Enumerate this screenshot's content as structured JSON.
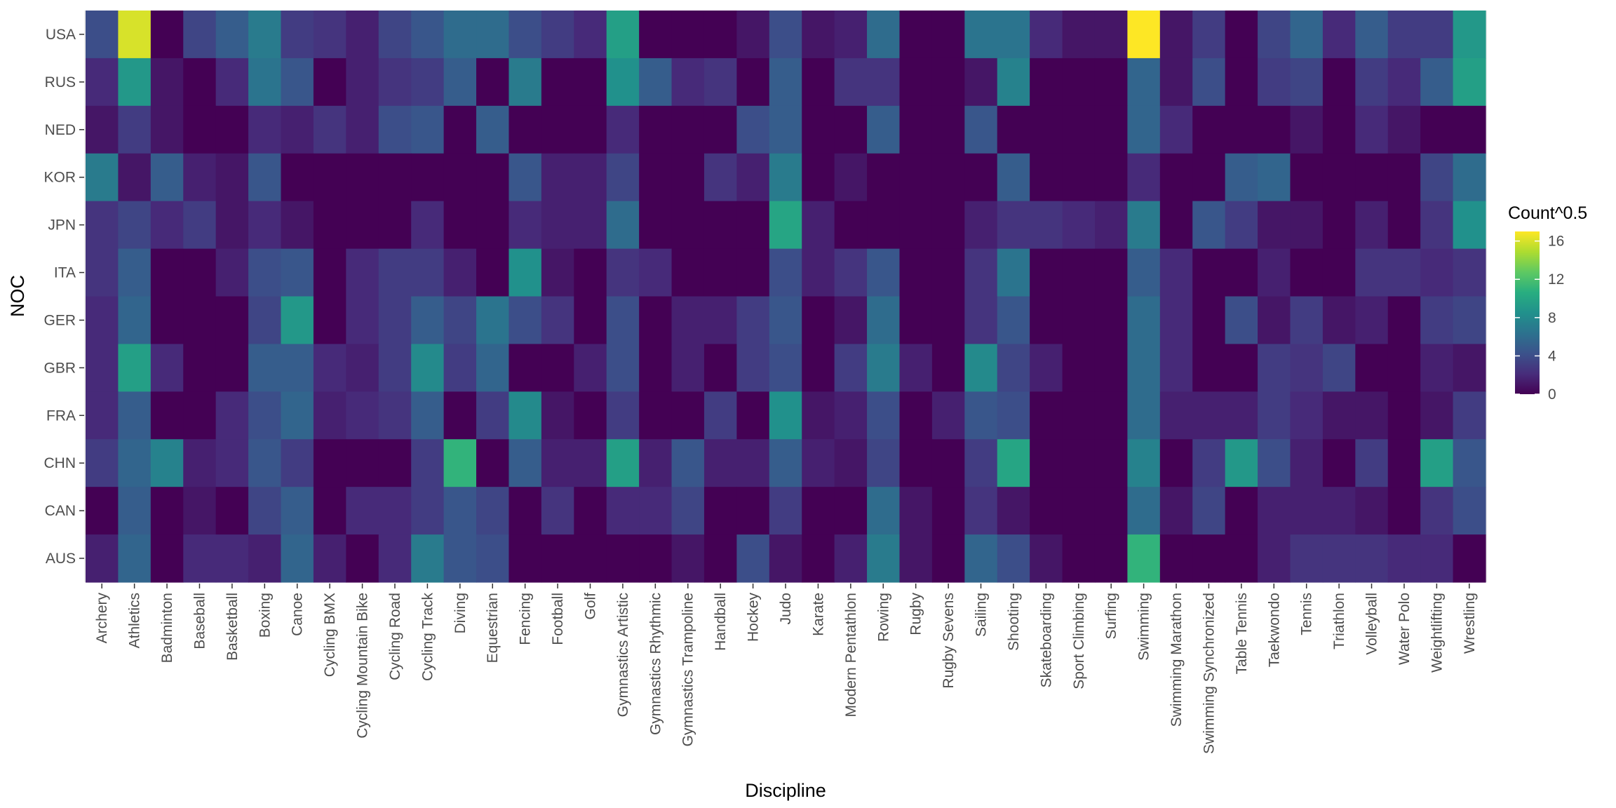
{
  "chart_data": {
    "type": "heatmap",
    "title": "",
    "xlabel": "Discipline",
    "ylabel": "NOC",
    "legend_title": "Count^0.5",
    "legend_position": "right",
    "color_scale": "viridis",
    "value_range": [
      0,
      17
    ],
    "legend_ticks": [
      0,
      4,
      8,
      12,
      16
    ],
    "rows": [
      "USA",
      "RUS",
      "NED",
      "KOR",
      "JPN",
      "ITA",
      "GER",
      "GBR",
      "FRA",
      "CHN",
      "CAN",
      "AUS"
    ],
    "columns": [
      "Archery",
      "Athletics",
      "Badminton",
      "Baseball",
      "Basketball",
      "Boxing",
      "Canoe",
      "Cycling BMX",
      "Cycling Mountain Bike",
      "Cycling Road",
      "Cycling Track",
      "Diving",
      "Equestrian",
      "Fencing",
      "Football",
      "Golf",
      "Gymnastics Artistic",
      "Gymnastics Rhythmic",
      "Gymnastics Trampoline",
      "Handball",
      "Hockey",
      "Judo",
      "Karate",
      "Modern Pentathlon",
      "Rowing",
      "Rugby",
      "Rugby Sevens",
      "Sailing",
      "Shooting",
      "Skateboarding",
      "Sport Climbing",
      "Surfing",
      "Swimming",
      "Swimming Marathon",
      "Swimming Synchronized",
      "Table Tennis",
      "Taekwondo",
      "Tennis",
      "Triathlon",
      "Volleyball",
      "Water Polo",
      "Weightlifting",
      "Wrestling"
    ],
    "values": [
      [
        4,
        16,
        0,
        3.5,
        5,
        7,
        3,
        2.5,
        1.5,
        3.5,
        4.5,
        6,
        6,
        4,
        3,
        2,
        9.5,
        0,
        0,
        0,
        1,
        4,
        1,
        1.5,
        6,
        0,
        0,
        6.5,
        6.5,
        2,
        1,
        1,
        17,
        1,
        3,
        0,
        3.5,
        5.5,
        2,
        5,
        3,
        3,
        9
      ],
      [
        2,
        9,
        1,
        0,
        2,
        6.5,
        4.5,
        0,
        1.5,
        2.5,
        3,
        5,
        0,
        7,
        0,
        0,
        8.5,
        5,
        2,
        2.5,
        0,
        5,
        0,
        2.5,
        2.5,
        0,
        0,
        1,
        7.5,
        0,
        0,
        0,
        5.5,
        1,
        4,
        0,
        3,
        3.5,
        0,
        3,
        2,
        5,
        9.5
      ],
      [
        1,
        3,
        1,
        0,
        0,
        2,
        1.5,
        2.5,
        1.5,
        4,
        4.5,
        0,
        5,
        0,
        0,
        0,
        2,
        0,
        0,
        0,
        4,
        5,
        0,
        0,
        5,
        0,
        0,
        4.5,
        0,
        0,
        0,
        0,
        5.5,
        2,
        0,
        0,
        0,
        1,
        0,
        2,
        1,
        0,
        0
      ],
      [
        7,
        1,
        5,
        1.5,
        1,
        4.5,
        0,
        0,
        0,
        0,
        0,
        0,
        0,
        4.5,
        1.5,
        1.5,
        3.5,
        0,
        0,
        2.5,
        1.5,
        7,
        0,
        1,
        0,
        0,
        0,
        0,
        5,
        0,
        0,
        0,
        2,
        0,
        0,
        5,
        5.5,
        0,
        0,
        0,
        0,
        3.5,
        6
      ],
      [
        2.5,
        3.5,
        2,
        3,
        1,
        2,
        1,
        0,
        0,
        0,
        2,
        0,
        0,
        2,
        1.5,
        1.5,
        6,
        0,
        0,
        0,
        0,
        10,
        1.5,
        0,
        0,
        0,
        0,
        1.5,
        2.5,
        2.5,
        2,
        1.5,
        7,
        0,
        4.5,
        3,
        1,
        1,
        0,
        1.5,
        0,
        2.5,
        8.5
      ],
      [
        2.5,
        5,
        0,
        0,
        1.5,
        4,
        4.5,
        0,
        2,
        3,
        3,
        1.5,
        0,
        8.5,
        1,
        0,
        2.5,
        2,
        0,
        0,
        0,
        4,
        1.5,
        2.5,
        4.5,
        0,
        0,
        2.5,
        6.5,
        0,
        0,
        0,
        5,
        2,
        0,
        0,
        1.5,
        0,
        0,
        2.5,
        2.5,
        2,
        2.5
      ],
      [
        2,
        5.5,
        0,
        0,
        0,
        3.5,
        9,
        0,
        2,
        3,
        5,
        3.5,
        6.5,
        4,
        2.5,
        0,
        4,
        0,
        1.5,
        1.5,
        3,
        4.5,
        0,
        1,
        6,
        0,
        0,
        2.5,
        4.5,
        0,
        0,
        0,
        6,
        2,
        0,
        4,
        1,
        3,
        1,
        1.5,
        0,
        3,
        3.5
      ],
      [
        2,
        9.5,
        2,
        0,
        0,
        5,
        5,
        2,
        1.5,
        3,
        8,
        3,
        5.5,
        0,
        0,
        1.5,
        4,
        0,
        1.5,
        0,
        3,
        4,
        0,
        3,
        7,
        1.5,
        0,
        8,
        3.5,
        1.5,
        0,
        0,
        6,
        2,
        0,
        0,
        3,
        2.5,
        3.5,
        0,
        0,
        1.5,
        1
      ],
      [
        2,
        5,
        0,
        0,
        2,
        4,
        5.5,
        1.5,
        2,
        2.5,
        5,
        0,
        3,
        8,
        1,
        0,
        3,
        0,
        0,
        3,
        0,
        8.5,
        1,
        1.5,
        4,
        0,
        1.5,
        4.5,
        4,
        0,
        0,
        0,
        6,
        1.5,
        1.5,
        1.5,
        3,
        2,
        1,
        1,
        0,
        1,
        3
      ],
      [
        3,
        5.5,
        7.5,
        1.5,
        2,
        4.5,
        3,
        0,
        0,
        0,
        3,
        11,
        0,
        5,
        1.5,
        1.5,
        9.5,
        1.5,
        4.5,
        1.5,
        1.5,
        5,
        1.5,
        1,
        3.5,
        0,
        0,
        3,
        10,
        0,
        0,
        0,
        7.5,
        0,
        3,
        9,
        4,
        1.5,
        0,
        3,
        0,
        9.5,
        4.5
      ],
      [
        0,
        5,
        0,
        1,
        0,
        3.5,
        5,
        0,
        2,
        2,
        3,
        4.5,
        3.5,
        0,
        2.5,
        0,
        2,
        2,
        3.5,
        0,
        0,
        3,
        0,
        0,
        6,
        1,
        0,
        2.5,
        1,
        0,
        0,
        0,
        6,
        1,
        3.5,
        0,
        1.5,
        1.5,
        1.5,
        1,
        0,
        2.5,
        4
      ],
      [
        1.5,
        5.5,
        0,
        2,
        2,
        1.5,
        5.5,
        1.5,
        0,
        2,
        7,
        4.5,
        4,
        0,
        0,
        0,
        0,
        0,
        1,
        0,
        4,
        1,
        0,
        1.5,
        7,
        1,
        0,
        5.5,
        4,
        1,
        0,
        0,
        11,
        0,
        0,
        0,
        1.5,
        2.5,
        2.5,
        2.5,
        2,
        2,
        0
      ]
    ]
  }
}
